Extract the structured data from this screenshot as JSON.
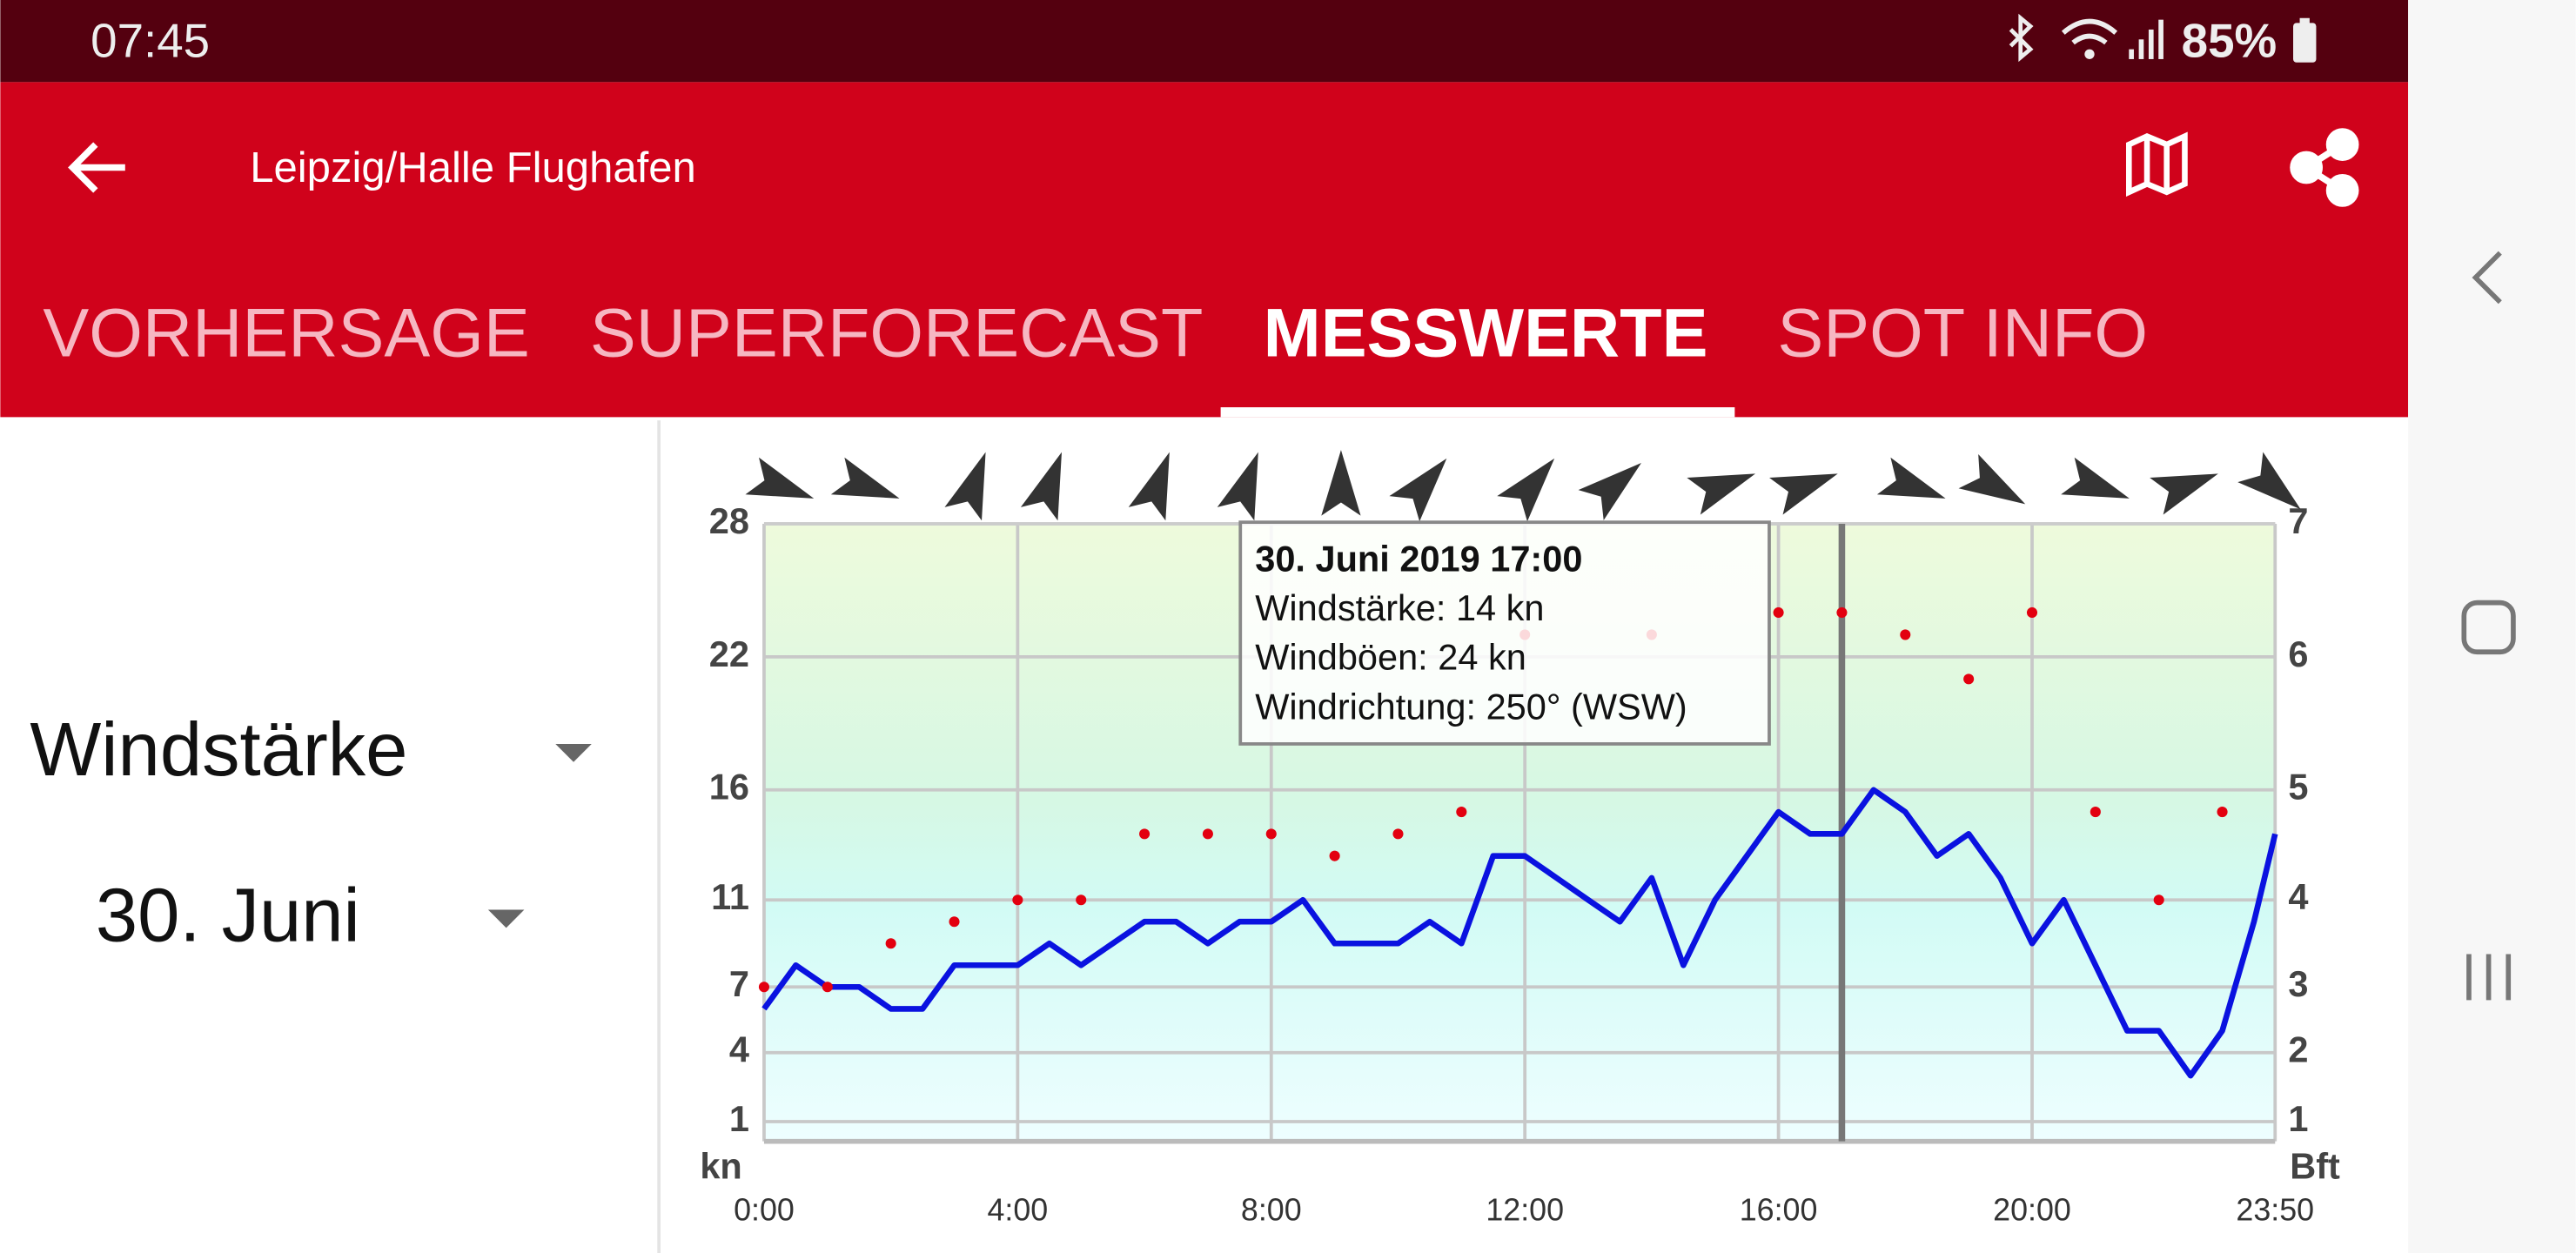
{
  "status_bar": {
    "time": "07:45",
    "battery": "85%"
  },
  "app_bar": {
    "title": "Leipzig/Halle Flughafen"
  },
  "tabs": {
    "items": [
      "VORHERSAGE",
      "SUPERFORECAST",
      "MESSWERTE",
      "SPOT INFO"
    ],
    "active": 2
  },
  "selectors": {
    "parameter": "Windstärke",
    "date": "30. Juni"
  },
  "chart_data": {
    "type": "line",
    "xlabel_left": "kn",
    "ylabel_right": "Bft",
    "x": [
      0,
      0.5,
      1,
      1.5,
      2,
      2.5,
      3,
      3.5,
      4,
      4.5,
      5,
      5.5,
      6,
      6.5,
      7,
      7.5,
      8,
      8.5,
      9,
      9.5,
      10,
      10.5,
      11,
      11.5,
      12,
      12.5,
      13,
      13.5,
      14,
      14.5,
      15,
      15.5,
      16,
      16.5,
      17,
      17.5,
      18,
      18.5,
      19,
      19.5,
      20,
      20.5,
      21,
      21.5,
      22,
      22.5,
      23,
      23.5,
      23.8333
    ],
    "series": [
      {
        "name": "Windstärke",
        "color": "#0a12e0",
        "values": [
          6,
          8,
          7,
          7,
          6,
          6,
          8,
          8,
          8,
          9,
          8,
          9,
          10,
          10,
          9,
          10,
          10,
          11,
          9,
          9,
          9,
          10,
          9,
          13,
          13,
          12,
          11,
          10,
          12,
          8,
          11,
          13,
          15,
          14,
          14,
          16,
          15,
          13,
          14,
          12,
          9,
          11,
          8,
          5,
          5,
          3,
          5,
          10,
          14
        ]
      },
      {
        "name": "Windböen",
        "color": "#e3000f",
        "style": "dots",
        "x": [
          0,
          1,
          2,
          3,
          4,
          5,
          6,
          7,
          8,
          9,
          10,
          11,
          12,
          13,
          14,
          15,
          16,
          17,
          18,
          19,
          20,
          21,
          22,
          23
        ],
        "values": [
          7,
          7,
          9,
          10,
          11,
          11,
          14,
          14,
          14,
          13,
          14,
          15,
          23,
          null,
          23,
          null,
          24,
          24,
          23,
          21,
          24,
          15,
          11,
          15
        ]
      }
    ],
    "directions": {
      "color": "#333",
      "x": [
        0.25,
        1.6,
        3.3,
        4.5,
        6.2,
        7.6,
        9.1,
        10.4,
        12.1,
        13.4,
        15.1,
        16.4,
        18.1,
        19.4,
        21.0,
        22.4,
        23.8
      ],
      "values": [
        290,
        290,
        200,
        200,
        200,
        200,
        180,
        220,
        220,
        230,
        250,
        250,
        290,
        300,
        290,
        250,
        310
      ]
    },
    "xlim": [
      0,
      23.8333
    ],
    "xticks": [
      {
        "value": 0,
        "label": "0:00"
      },
      {
        "value": 4,
        "label": "4:00"
      },
      {
        "value": 8,
        "label": "8:00"
      },
      {
        "value": 12,
        "label": "12:00"
      },
      {
        "value": 16,
        "label": "16:00"
      },
      {
        "value": 20,
        "label": "20:00"
      },
      {
        "value": 23.8333,
        "label": "23:50"
      }
    ],
    "ylim": [
      0,
      28
    ],
    "yticks": [
      1,
      4,
      7,
      11,
      16,
      22,
      28
    ],
    "y2lim": [
      0,
      7
    ],
    "y2ticks": [
      1,
      2,
      3,
      4,
      5,
      6,
      7
    ],
    "grid": true,
    "cursor_x": 17,
    "tooltip": {
      "title": "30. Juni 2019 17:00",
      "lines": [
        "Windstärke: 14 kn",
        "Windböen: 24 kn",
        "Windrichtung: 250° (WSW)"
      ]
    }
  }
}
